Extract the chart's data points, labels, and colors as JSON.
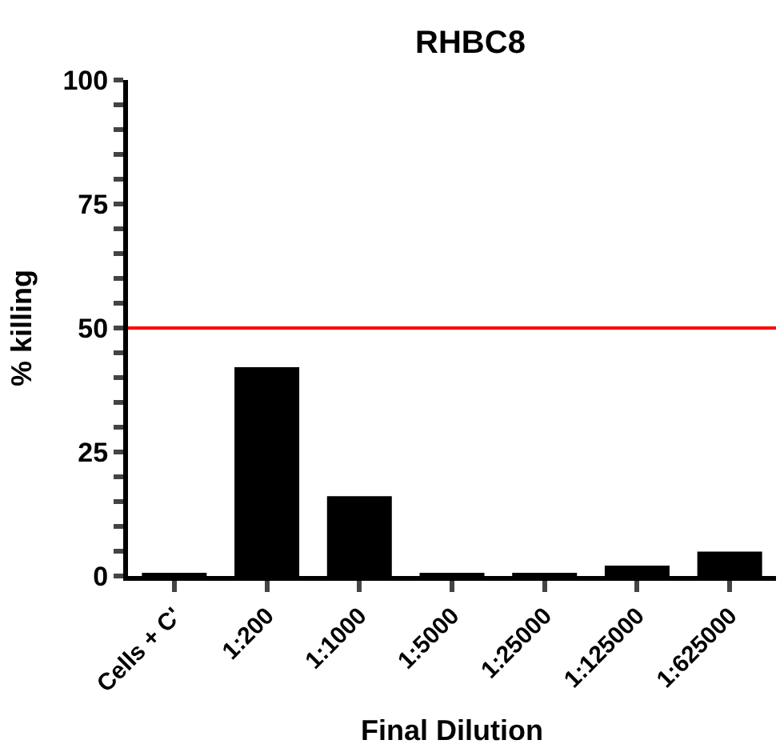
{
  "chart_data": {
    "type": "bar",
    "title": "RHBC8",
    "xlabel": "Final Dilution",
    "ylabel": "% killing",
    "categories": [
      "Cells + C'",
      "1:200",
      "1:1000",
      "1:5000",
      "1:25000",
      "1:125000",
      "1:625000"
    ],
    "values": [
      0.4,
      42.1,
      16.1,
      0.4,
      0.4,
      2.1,
      4.9
    ],
    "color": "#000000",
    "ylim": [
      0,
      100
    ],
    "yticks": [
      0,
      {
        "value": 5,
        "label": null
      },
      {
        "value": 10,
        "label": null
      },
      {
        "value": 15,
        "label": null
      },
      {
        "value": 20,
        "label": null
      },
      25,
      {
        "value": 30,
        "label": null
      },
      {
        "value": 35,
        "label": null
      },
      {
        "value": 40,
        "label": null
      },
      {
        "value": 45,
        "label": null
      },
      50,
      {
        "value": 55,
        "label": null
      },
      {
        "value": 60,
        "label": null
      },
      {
        "value": 65,
        "label": null
      },
      {
        "value": 70,
        "label": null
      },
      75,
      {
        "value": 80,
        "label": null
      },
      {
        "value": 85,
        "label": null
      },
      {
        "value": 90,
        "label": null
      },
      {
        "value": 95,
        "label": null
      },
      100
    ],
    "ref_lines": [
      {
        "axis": "y",
        "value": 50,
        "color": "#ff0000"
      }
    ],
    "legend": false
  }
}
